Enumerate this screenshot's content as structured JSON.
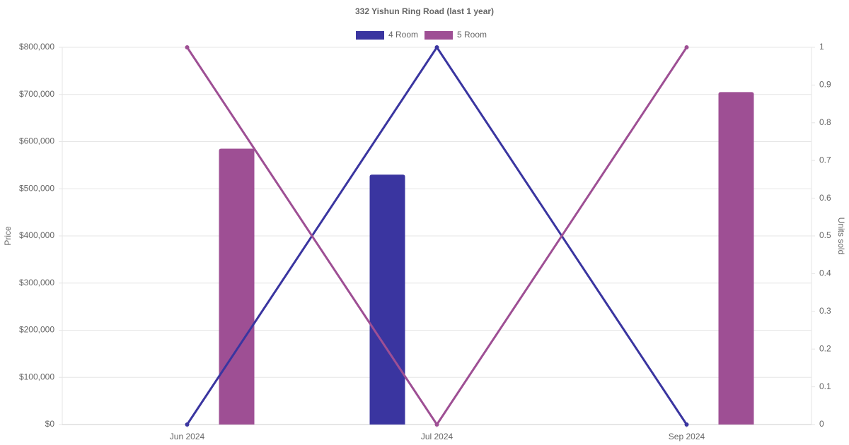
{
  "chart_data": {
    "type": "bar-line",
    "title": "332 Yishun Ring Road (last 1 year)",
    "categories": [
      "Jun 2024",
      "Jul 2024",
      "Sep 2024"
    ],
    "ylabel": "Price",
    "y2label": "Units sold",
    "ylim": [
      0,
      800000
    ],
    "yticks": [
      {
        "value": 0,
        "label": "$0"
      },
      {
        "value": 100000,
        "label": "$100,000"
      },
      {
        "value": 200000,
        "label": "$200,000"
      },
      {
        "value": 300000,
        "label": "$300,000"
      },
      {
        "value": 400000,
        "label": "$400,000"
      },
      {
        "value": 500000,
        "label": "$500,000"
      },
      {
        "value": 600000,
        "label": "$600,000"
      },
      {
        "value": 700000,
        "label": "$700,000"
      },
      {
        "value": 800000,
        "label": "$800,000"
      }
    ],
    "y2lim": [
      0,
      1
    ],
    "y2ticks": [
      0,
      0.1,
      0.2,
      0.3,
      0.4,
      0.5,
      0.6,
      0.7,
      0.8,
      0.9,
      1
    ],
    "grid": true,
    "series": [
      {
        "name": "4 Room",
        "type": "bar",
        "color": "#3a35a0",
        "values": [
          null,
          530000,
          null
        ]
      },
      {
        "name": "5 Room",
        "type": "bar",
        "color": "#9e4f94",
        "values": [
          585000,
          null,
          705000
        ]
      },
      {
        "type": "line",
        "axis": "y2",
        "color": "#3a35a0",
        "values": [
          0,
          1,
          0
        ]
      },
      {
        "type": "line",
        "axis": "y2",
        "color": "#9e4f94",
        "values": [
          1,
          0,
          1
        ]
      }
    ]
  }
}
